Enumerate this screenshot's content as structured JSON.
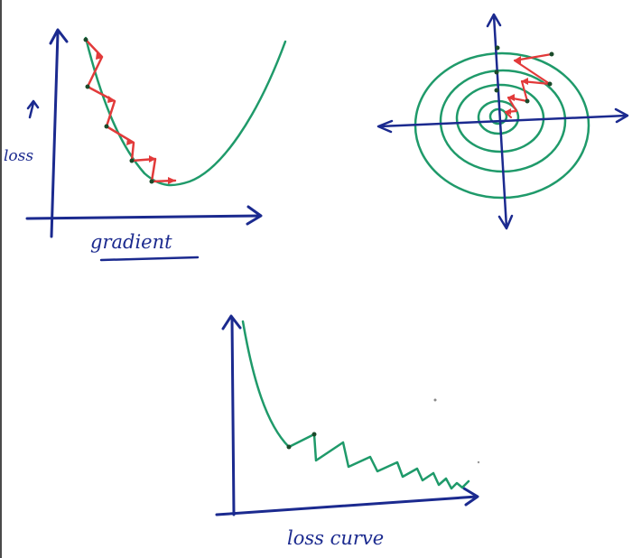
{
  "labels": {
    "loss_label": "loss",
    "gradient_label": "gradient",
    "loss_curve_label": "loss curve"
  },
  "colors": {
    "axis": "#1b2a8f",
    "curve": "#1f9a6a",
    "steps": "#e23a3a",
    "background": "#ffffff"
  }
}
